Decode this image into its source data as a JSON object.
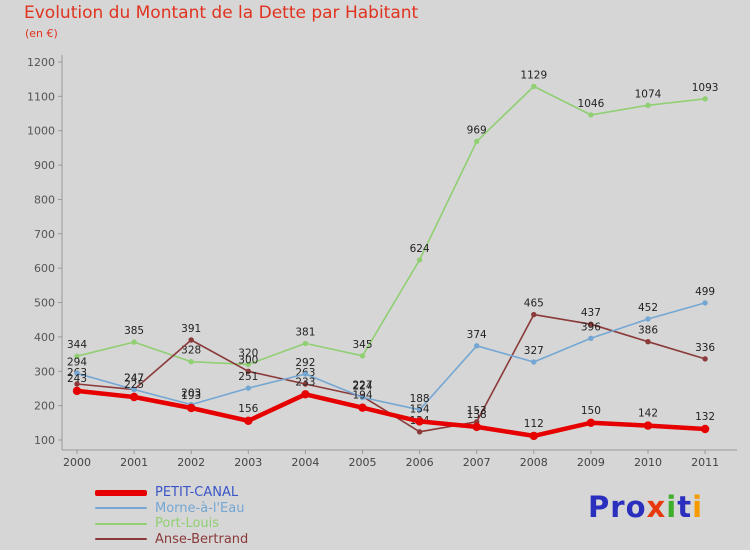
{
  "title": "Evolution du Montant de la Dette par Habitant",
  "subtitle": "(en €)",
  "colors": {
    "background": "#d6d6d6",
    "title": "#e0331f",
    "axis": "#9a9a9a",
    "tick_label": "#555555",
    "data_label": "#222222"
  },
  "chart_data": {
    "type": "line",
    "x": [
      "2000",
      "2001",
      "2002",
      "2003",
      "2004",
      "2005",
      "2006",
      "2007",
      "2008",
      "2009",
      "2010",
      "2011"
    ],
    "series": [
      {
        "name": "PETIT-CANAL",
        "color": "#e60000",
        "legend_text_color": "#3a55c8",
        "thick": true,
        "values": [
          243,
          225,
          193,
          156,
          233,
          194,
          154,
          138,
          112,
          150,
          142,
          132
        ]
      },
      {
        "name": "Morne-à-l'Eau",
        "color": "#74a7d3",
        "legend_text_color": "#74a7d3",
        "thick": false,
        "values": [
          294,
          247,
          203,
          251,
          292,
          224,
          188,
          374,
          327,
          396,
          452,
          499
        ]
      },
      {
        "name": "Port-Louis",
        "color": "#90cf72",
        "legend_text_color": "#90cf72",
        "thick": false,
        "values": [
          344,
          385,
          328,
          320,
          381,
          345,
          624,
          969,
          1129,
          1046,
          1074,
          1093
        ]
      },
      {
        "name": "Anse-Bertrand",
        "color": "#8b3a3a",
        "legend_text_color": "#8b3a3a",
        "thick": false,
        "values": [
          263,
          247,
          391,
          300,
          263,
          227,
          124,
          153,
          465,
          437,
          386,
          336
        ]
      }
    ],
    "ylim": [
      100,
      1200
    ],
    "ytick_step": 100,
    "grid": false,
    "legend_position": "bottom-left",
    "data_labels": true
  },
  "logo": {
    "letters": [
      {
        "ch": "P",
        "color": "#2a2fbe"
      },
      {
        "ch": "r",
        "color": "#2a2fbe"
      },
      {
        "ch": "o",
        "color": "#2a2fbe"
      },
      {
        "ch": "x",
        "color": "#e8380d"
      },
      {
        "ch": "i",
        "color": "#3fae2a"
      },
      {
        "ch": "t",
        "color": "#2a2fbe"
      },
      {
        "ch": "i",
        "color": "#f59b00"
      }
    ]
  }
}
